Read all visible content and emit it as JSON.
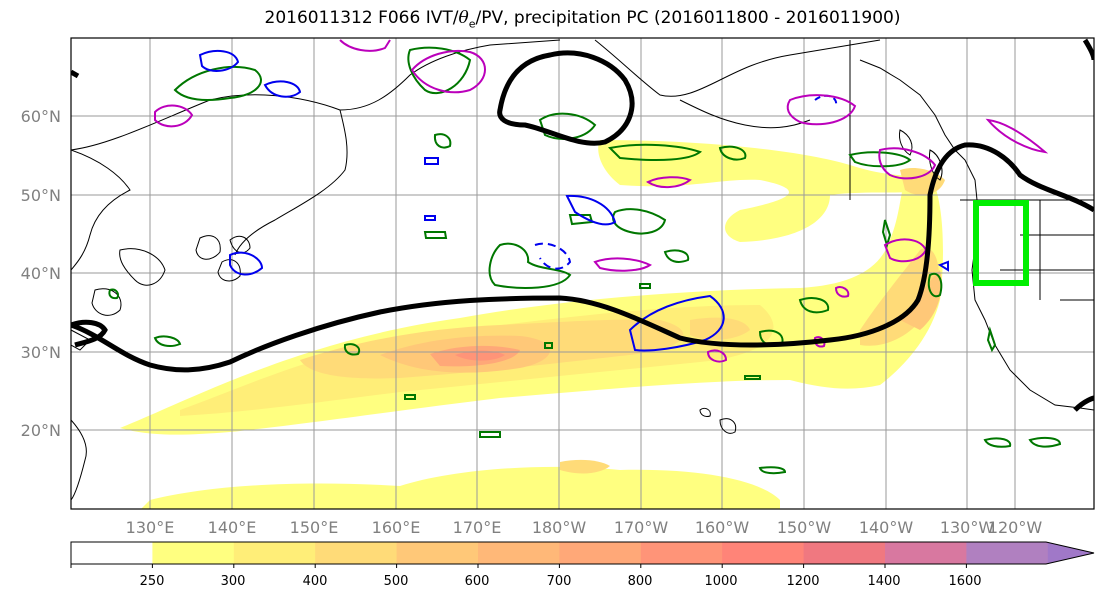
{
  "title": {
    "prefix": "2016011312 F066 IVT/",
    "theta": "θ",
    "theta_sub": "e",
    "suffix": "/PV, precipitation PC (2016011800 - 2016011900)"
  },
  "axes": {
    "lat_labels": [
      "20°N",
      "30°N",
      "40°N",
      "50°N",
      "60°N"
    ],
    "lon_labels": [
      "130°E",
      "140°E",
      "150°E",
      "160°E",
      "170°E",
      "180°W",
      "170°W",
      "160°W",
      "150°W",
      "140°W",
      "130°W",
      "120°W"
    ],
    "lon_range": [
      120,
      250
    ],
    "lat_range": [
      10,
      70
    ]
  },
  "colorbar": {
    "levels": [
      "250",
      "300",
      "400",
      "500",
      "600",
      "700",
      "800",
      "1000",
      "1200",
      "1400",
      "1600"
    ],
    "colors": [
      "#ffff80",
      "#ffee78",
      "#ffdb78",
      "#ffc878",
      "#ffb878",
      "#ffa878",
      "#ff9478",
      "#ff8478",
      "#f07880",
      "#d878a0",
      "#b080c0",
      "#a078c8"
    ]
  },
  "colors": {
    "contour_green": "#007700",
    "contour_blue": "#0000ee",
    "contour_magenta": "#bb00bb",
    "pv_contour": "#000000",
    "box": "#00ee00",
    "grid": "#9a9a9a"
  }
}
